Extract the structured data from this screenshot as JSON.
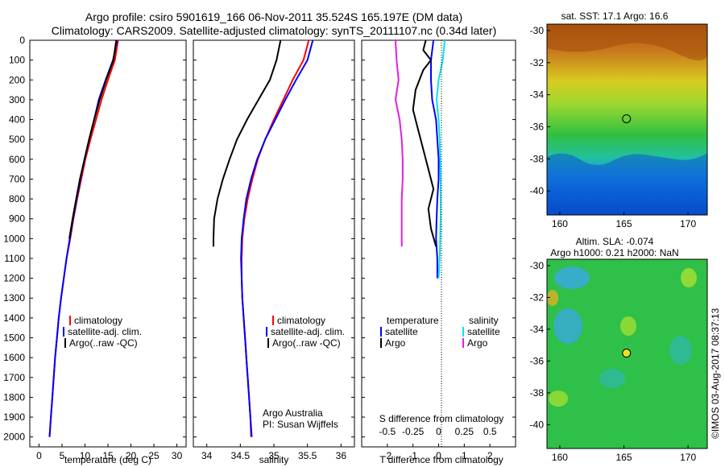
{
  "title_line1": "Argo profile: csiro 5901619_166 06-Nov-2011 35.524S 165.197E (DM data)",
  "title_line2": "Climatology: CARS2009. Satellite-adjusted climatology: synTS_20111107.nc (0.34d later)",
  "depth_ticks": [
    0,
    100,
    200,
    300,
    400,
    500,
    600,
    700,
    800,
    900,
    1000,
    1100,
    1200,
    1300,
    1400,
    1500,
    1600,
    1700,
    1800,
    1900,
    2000
  ],
  "panels": {
    "temperature": {
      "xlabel": "temperature (deg C)",
      "xlim": [
        -2,
        32
      ],
      "xticks": [
        "0",
        "5",
        "10",
        "15",
        "20",
        "25",
        "30"
      ],
      "xtick_values": [
        0,
        5,
        10,
        15,
        20,
        25,
        30
      ],
      "legend": [
        "climatology",
        "satellite-adj. clim.",
        "Argo(..raw -QC)"
      ]
    },
    "salinity": {
      "xlabel": "salinity",
      "xlim": [
        33.8,
        36.2
      ],
      "xticks": [
        "34",
        "34.5",
        "35",
        "35.5",
        "36"
      ],
      "xtick_values": [
        34,
        34.5,
        35,
        35.5,
        36
      ],
      "legend": [
        "climatology",
        "satellite-adj. clim.",
        "Argo(..raw -QC)"
      ],
      "credit_line1": "Argo Australia",
      "credit_line2": "PI: Susan Wijffels"
    },
    "difference": {
      "xlabel_top": "S difference from climatology",
      "xlabel_bottom": "T difference from climatology",
      "top_ticks": [
        "-0.5",
        "-0.25",
        "0",
        "0.25",
        "0.5"
      ],
      "top_tick_values": [
        -0.5,
        -0.25,
        0,
        0.25,
        0.5
      ],
      "bottom_ticks": [
        "-2",
        "-1",
        "0",
        "1",
        "2"
      ],
      "bottom_tick_values": [
        -2,
        -1,
        0,
        1,
        2
      ],
      "xlim_T": [
        -3,
        3
      ],
      "legend_temperature_head": "temperature",
      "legend_salinity_head": "salinity",
      "legend_temperature": [
        "satellite",
        "Argo"
      ],
      "legend_salinity": [
        "satellite",
        "Argo"
      ]
    }
  },
  "maps": {
    "sst": {
      "title": "sat. SST: 17.1  Argo: 16.6",
      "yticks": [
        "-30",
        "-32",
        "-34",
        "-36",
        "-38",
        "-40"
      ],
      "ytick_values": [
        -30,
        -32,
        -34,
        -36,
        -38,
        -40
      ],
      "xticks": [
        "160",
        "165",
        "170"
      ],
      "xtick_values": [
        160,
        165,
        170
      ],
      "lon_range": [
        159,
        171.5
      ],
      "lat_range": [
        -41.5,
        -29.6
      ],
      "marker": {
        "lon": 165.2,
        "lat": -35.5
      }
    },
    "sla": {
      "title_line1": "Altim. SLA: -0.074",
      "title_line2": "Argo h1000: 0.21 h2000: NaN",
      "yticks": [
        "-30",
        "-32",
        "-34",
        "-36",
        "-38",
        "-40"
      ],
      "ytick_values": [
        -30,
        -32,
        -34,
        -36,
        -38,
        -40
      ],
      "xticks": [
        "160",
        "165",
        "170"
      ],
      "xtick_values": [
        160,
        165,
        170
      ],
      "lon_range": [
        159,
        171.5
      ],
      "lat_range": [
        -41.5,
        -29.6
      ],
      "marker": {
        "lon": 165.2,
        "lat": -35.5
      }
    }
  },
  "side_label": "©IMOS 03-Aug-2017 08:37:13",
  "colors": {
    "climatology": "#ff0000",
    "satellite_adj": "#0000ff",
    "argo": "#000000",
    "sal_satellite": "#00e5ee",
    "sal_argo": "#e020e0"
  },
  "chart_data": [
    {
      "type": "line",
      "name": "temperature",
      "series": [
        {
          "name": "climatology",
          "points": [
            [
              17.2,
              0
            ],
            [
              16.5,
              100
            ],
            [
              15.0,
              200
            ],
            [
              13.6,
              300
            ],
            [
              12.4,
              400
            ],
            [
              11.2,
              500
            ],
            [
              10.1,
              600
            ],
            [
              9.2,
              700
            ],
            [
              8.3,
              800
            ],
            [
              7.5,
              900
            ],
            [
              6.8,
              1000
            ],
            [
              6.0,
              1100
            ],
            [
              5.4,
              1200
            ],
            [
              4.8,
              1300
            ],
            [
              4.3,
              1400
            ],
            [
              3.9,
              1500
            ],
            [
              3.5,
              1600
            ],
            [
              3.2,
              1700
            ],
            [
              2.9,
              1800
            ],
            [
              2.6,
              1900
            ],
            [
              2.3,
              2000
            ]
          ]
        },
        {
          "name": "satellite-adj. clim.",
          "points": [
            [
              17.0,
              0
            ],
            [
              16.1,
              100
            ],
            [
              14.5,
              200
            ],
            [
              13.0,
              300
            ],
            [
              12.0,
              400
            ],
            [
              10.9,
              500
            ],
            [
              9.9,
              600
            ],
            [
              9.0,
              700
            ],
            [
              8.2,
              800
            ],
            [
              7.4,
              900
            ],
            [
              6.7,
              1000
            ],
            [
              6.0,
              1100
            ],
            [
              5.4,
              1200
            ],
            [
              4.8,
              1300
            ],
            [
              4.3,
              1400
            ],
            [
              3.9,
              1500
            ],
            [
              3.5,
              1600
            ],
            [
              3.2,
              1700
            ],
            [
              2.9,
              1800
            ],
            [
              2.6,
              1900
            ],
            [
              2.3,
              2000
            ]
          ]
        },
        {
          "name": "Argo(..raw -QC)",
          "points": [
            [
              16.8,
              0
            ],
            [
              16.2,
              100
            ],
            [
              14.6,
              200
            ],
            [
              13.2,
              300
            ],
            [
              12.0,
              400
            ],
            [
              10.9,
              500
            ],
            [
              9.9,
              600
            ],
            [
              8.9,
              700
            ],
            [
              8.1,
              800
            ],
            [
              7.3,
              900
            ],
            [
              6.6,
              1000
            ]
          ]
        }
      ]
    },
    {
      "type": "line",
      "name": "salinity",
      "series": [
        {
          "name": "climatology",
          "points": [
            [
              35.52,
              0
            ],
            [
              35.44,
              100
            ],
            [
              35.28,
              200
            ],
            [
              35.14,
              300
            ],
            [
              35.0,
              400
            ],
            [
              34.87,
              500
            ],
            [
              34.76,
              600
            ],
            [
              34.68,
              700
            ],
            [
              34.61,
              800
            ],
            [
              34.56,
              900
            ],
            [
              34.53,
              1000
            ],
            [
              34.52,
              1100
            ],
            [
              34.52,
              1200
            ],
            [
              34.53,
              1300
            ],
            [
              34.55,
              1400
            ],
            [
              34.57,
              1500
            ],
            [
              34.59,
              1600
            ],
            [
              34.61,
              1700
            ],
            [
              34.63,
              1800
            ],
            [
              34.65,
              1900
            ],
            [
              34.66,
              2000
            ]
          ]
        },
        {
          "name": "satellite-adj. clim.",
          "points": [
            [
              35.58,
              0
            ],
            [
              35.5,
              100
            ],
            [
              35.33,
              200
            ],
            [
              35.17,
              300
            ],
            [
              35.02,
              400
            ],
            [
              34.87,
              500
            ],
            [
              34.75,
              600
            ],
            [
              34.66,
              700
            ],
            [
              34.59,
              800
            ],
            [
              34.55,
              900
            ],
            [
              34.52,
              1000
            ],
            [
              34.51,
              1100
            ],
            [
              34.52,
              1200
            ],
            [
              34.53,
              1300
            ],
            [
              34.55,
              1400
            ],
            [
              34.57,
              1500
            ],
            [
              34.59,
              1600
            ],
            [
              34.61,
              1700
            ],
            [
              34.63,
              1800
            ],
            [
              34.65,
              1900
            ],
            [
              34.67,
              2000
            ]
          ]
        },
        {
          "name": "Argo(..raw -QC)",
          "points": [
            [
              35.1,
              0
            ],
            [
              35.04,
              100
            ],
            [
              34.94,
              200
            ],
            [
              34.77,
              300
            ],
            [
              34.6,
              400
            ],
            [
              34.45,
              500
            ],
            [
              34.34,
              600
            ],
            [
              34.24,
              700
            ],
            [
              34.16,
              800
            ],
            [
              34.11,
              900
            ],
            [
              34.1,
              1000
            ],
            [
              34.1,
              1040
            ]
          ]
        }
      ]
    },
    {
      "type": "line",
      "name": "difference",
      "xlim_T": [
        -3,
        3
      ],
      "series": [
        {
          "name": "temperature satellite",
          "points": [
            [
              -0.2,
              0
            ],
            [
              -0.3,
              100
            ],
            [
              -0.3,
              200
            ],
            [
              -0.25,
              300
            ],
            [
              -0.1,
              400
            ],
            [
              -0.05,
              500
            ],
            [
              0,
              600
            ],
            [
              0,
              700
            ],
            [
              -0.05,
              800
            ],
            [
              -0.08,
              900
            ],
            [
              -0.1,
              1000
            ],
            [
              -0.05,
              1100
            ],
            [
              -0.05,
              1200
            ]
          ]
        },
        {
          "name": "temperature Argo",
          "points": [
            [
              -0.5,
              0
            ],
            [
              -0.6,
              50
            ],
            [
              -0.3,
              100
            ],
            [
              -0.6,
              150
            ],
            [
              -0.9,
              250
            ],
            [
              -1.0,
              350
            ],
            [
              -0.8,
              450
            ],
            [
              -0.6,
              550
            ],
            [
              -0.4,
              650
            ],
            [
              -0.2,
              750
            ],
            [
              -0.4,
              850
            ],
            [
              -0.3,
              950
            ],
            [
              -0.1,
              1040
            ]
          ]
        },
        {
          "name": "salinity satellite",
          "points": [
            [
              0.06,
              0
            ],
            [
              0.04,
              100
            ],
            [
              0.0,
              200
            ],
            [
              -0.02,
              300
            ],
            [
              0.0,
              400
            ],
            [
              0.01,
              500
            ],
            [
              0.02,
              700
            ],
            [
              0.02,
              900
            ],
            [
              0.01,
              1100
            ],
            [
              0.0,
              1200
            ]
          ]
        },
        {
          "name": "salinity Argo",
          "points": [
            [
              -0.42,
              0
            ],
            [
              -0.41,
              100
            ],
            [
              -0.39,
              200
            ],
            [
              -0.42,
              300
            ],
            [
              -0.38,
              400
            ],
            [
              -0.36,
              500
            ],
            [
              -0.35,
              600
            ],
            [
              -0.35,
              700
            ],
            [
              -0.36,
              800
            ],
            [
              -0.36,
              900
            ],
            [
              -0.36,
              1040
            ]
          ]
        }
      ]
    }
  ]
}
